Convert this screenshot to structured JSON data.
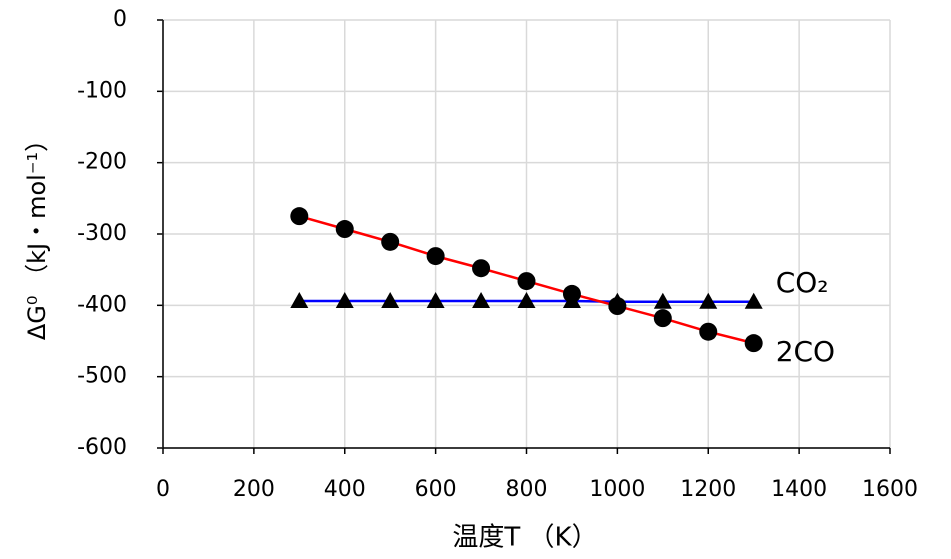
{
  "chart_data": {
    "type": "line",
    "xlabel": "温度T （K）",
    "ylabel": "ΔG⁰ （kJ・mol⁻¹）",
    "x": [
      300,
      400,
      500,
      600,
      700,
      800,
      900,
      1000,
      1100,
      1200,
      1300
    ],
    "series": [
      {
        "name": "CO₂",
        "color": "#0000ff",
        "marker": "triangle",
        "marker_color": "#000000",
        "values": [
          -394,
          -394,
          -394,
          -394,
          -394,
          -394,
          -394,
          -395,
          -395,
          -395,
          -395
        ]
      },
      {
        "name": "2CO",
        "color": "#ff0000",
        "marker": "circle",
        "marker_color": "#000000",
        "values": [
          -275,
          -293,
          -311,
          -331,
          -348,
          -366,
          -384,
          -401,
          -418,
          -437,
          -453
        ]
      }
    ],
    "xlim": [
      0,
      1600
    ],
    "xticks": [
      0,
      200,
      400,
      600,
      800,
      1000,
      1200,
      1400,
      1600
    ],
    "ylim": [
      -600,
      0
    ],
    "yticks": [
      0,
      -100,
      -200,
      -300,
      -400,
      -500,
      -600
    ],
    "grid": true
  }
}
